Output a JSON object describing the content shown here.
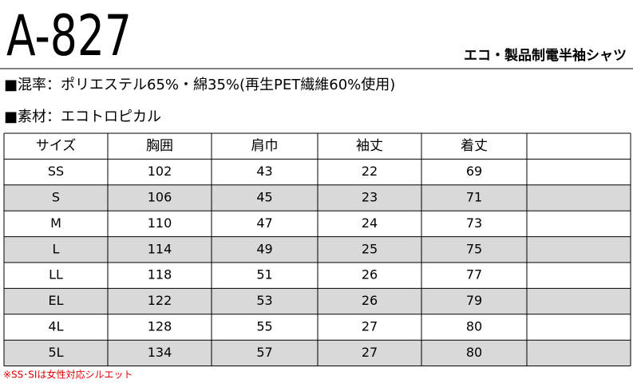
{
  "header": {
    "title": "A-827",
    "subtitle": "エコ・製品制電半袖シャツ"
  },
  "specs": [
    "■混率：ポリエステル65%・綿35%(再生PET繊維60%使用)",
    "■素材：エコトロピカル"
  ],
  "table": {
    "columns": [
      "サイズ",
      "胸囲",
      "肩巾",
      "袖丈",
      "着丈"
    ],
    "rows": [
      [
        "SS",
        102,
        43,
        22,
        69
      ],
      [
        "S",
        106,
        45,
        23,
        71
      ],
      [
        "M",
        110,
        47,
        24,
        73
      ],
      [
        "L",
        114,
        49,
        25,
        75
      ],
      [
        "LL",
        118,
        51,
        26,
        77
      ],
      [
        "EL",
        122,
        53,
        26,
        79
      ],
      [
        "4L",
        128,
        55,
        27,
        80
      ],
      [
        "5L",
        134,
        57,
        27,
        80
      ]
    ]
  },
  "footnote": "※SS･SIは女性対応シルエット"
}
